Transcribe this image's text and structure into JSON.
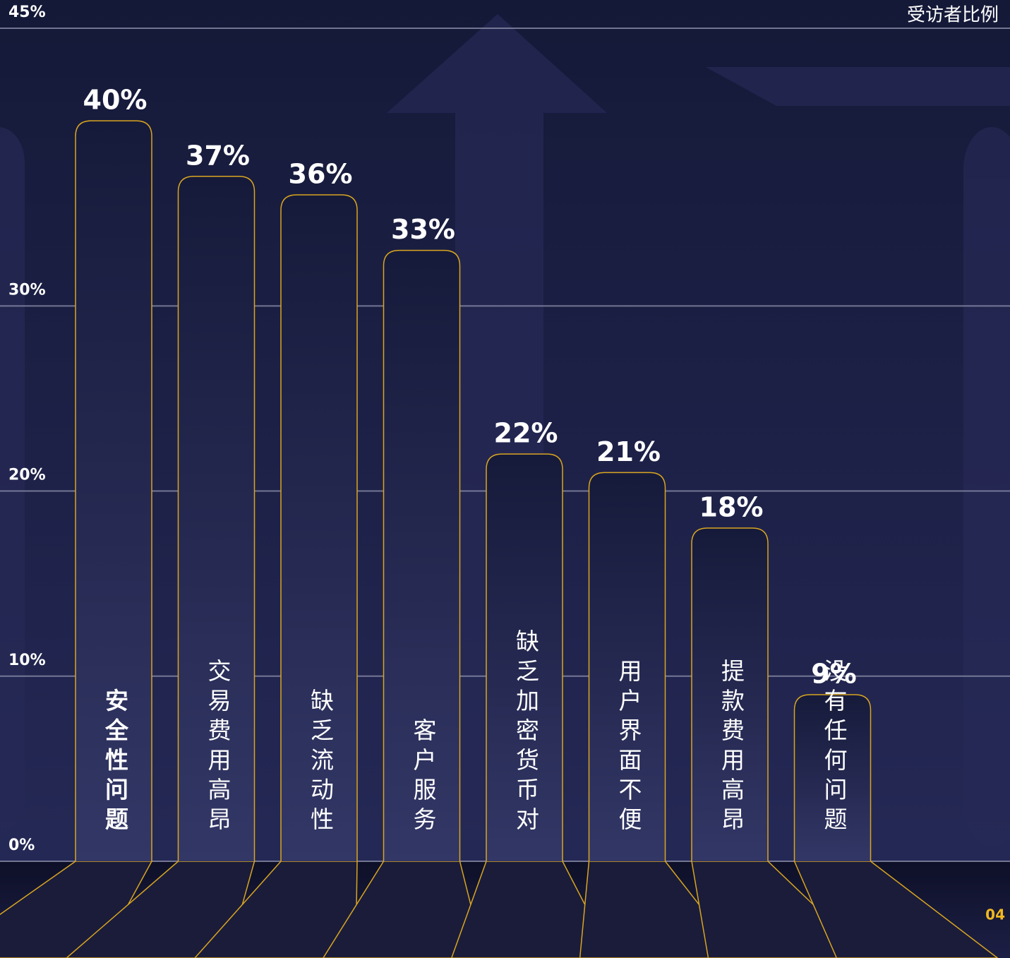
{
  "chart_data": {
    "type": "bar",
    "y_label": "受访者比例",
    "categories": [
      "安全性问题",
      "交易费用高昂",
      "缺乏流动性",
      "客户服务",
      "缺乏加密货币对",
      "用户界面不便",
      "提款费用高昂",
      "没有任何问题"
    ],
    "values": [
      40,
      37,
      36,
      33,
      22,
      21,
      18,
      9
    ],
    "value_labels": [
      "40%",
      "37%",
      "36%",
      "33%",
      "22%",
      "21%",
      "18%",
      "9%"
    ],
    "color": "#d9a520",
    "ylim": [
      0,
      45
    ],
    "yticks": [
      {
        "value": 0,
        "label": "0%"
      },
      {
        "value": 10,
        "label": "10%"
      },
      {
        "value": 20,
        "label": "20%"
      },
      {
        "value": 30,
        "label": "30%"
      },
      {
        "value": 45,
        "label": "45%"
      }
    ],
    "grid": true,
    "page_number": "04"
  }
}
